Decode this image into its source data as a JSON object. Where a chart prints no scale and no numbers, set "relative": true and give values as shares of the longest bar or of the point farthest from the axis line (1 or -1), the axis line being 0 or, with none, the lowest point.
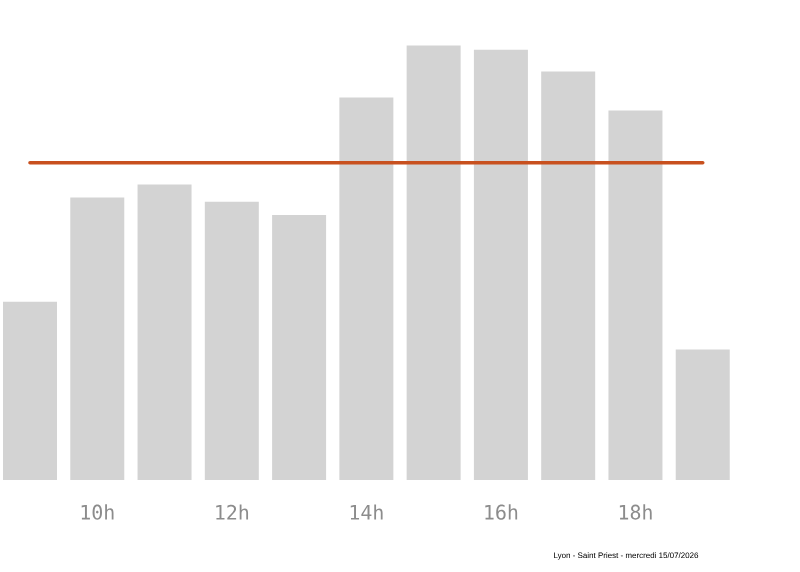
{
  "chart_data": {
    "type": "bar",
    "relative": true,
    "categories": [
      null,
      "10h",
      null,
      "12h",
      null,
      "14h",
      null,
      "16h",
      null,
      "18h",
      null
    ],
    "values": [
      0.41,
      0.65,
      0.68,
      0.64,
      0.61,
      0.88,
      1,
      0.99,
      0.94,
      0.85,
      0.3
    ],
    "color": "#d3d3d3",
    "ref_lines": [
      {
        "axis": "y",
        "value": 0.73,
        "color": "#c8501e"
      }
    ],
    "annotations": [
      "Lyon - Saint Priest - mercredi 15/07/2026"
    ]
  }
}
